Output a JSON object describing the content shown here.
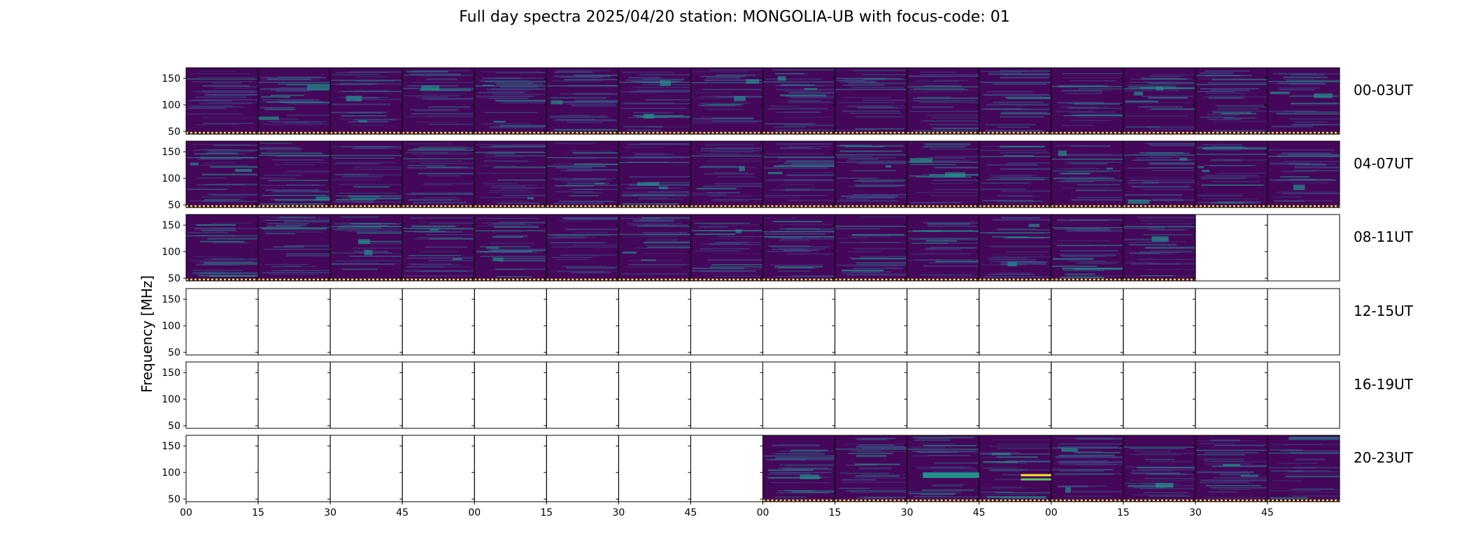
{
  "chart_data": {
    "type": "heatmap",
    "title": "Full day spectra 2025/04/20 station: MONGOLIA-UB with focus-code: 01",
    "ylabel": "Frequency [MHz]",
    "xlabel": "",
    "ylim": [
      45,
      170
    ],
    "y_ticks": [
      "150",
      "100",
      "50"
    ],
    "y_tick_values": [
      150,
      100,
      50
    ],
    "x_tick_labels": [
      "00",
      "15",
      "30",
      "45",
      "00",
      "15",
      "30",
      "45",
      "00",
      "15",
      "30",
      "45",
      "00",
      "15",
      "30",
      "45"
    ],
    "rows": [
      {
        "label": "00-03UT",
        "panels": [
          1,
          1,
          1,
          1,
          1,
          1,
          1,
          1,
          1,
          1,
          1,
          1,
          1,
          1,
          1,
          1
        ]
      },
      {
        "label": "04-07UT",
        "panels": [
          1,
          1,
          1,
          1,
          1,
          1,
          1,
          1,
          1,
          1,
          1,
          1,
          1,
          1,
          1,
          1
        ]
      },
      {
        "label": "08-11UT",
        "panels": [
          1,
          1,
          1,
          1,
          1,
          1,
          1,
          1,
          1,
          1,
          1,
          1,
          1,
          1,
          0,
          0
        ]
      },
      {
        "label": "12-15UT",
        "panels": [
          0,
          0,
          0,
          0,
          0,
          0,
          0,
          0,
          0,
          0,
          0,
          0,
          0,
          0,
          0,
          0
        ]
      },
      {
        "label": "16-19UT",
        "panels": [
          0,
          0,
          0,
          0,
          0,
          0,
          0,
          0,
          0,
          0,
          0,
          0,
          0,
          0,
          0,
          0
        ]
      },
      {
        "label": "20-23UT",
        "panels": [
          0,
          0,
          0,
          0,
          0,
          0,
          0,
          0,
          1,
          1,
          1,
          1,
          1,
          1,
          1,
          1
        ]
      }
    ],
    "colormap": [
      "#440154",
      "#3b528b",
      "#21918c",
      "#5ec962",
      "#fde725"
    ],
    "background_color": "#45075a"
  }
}
